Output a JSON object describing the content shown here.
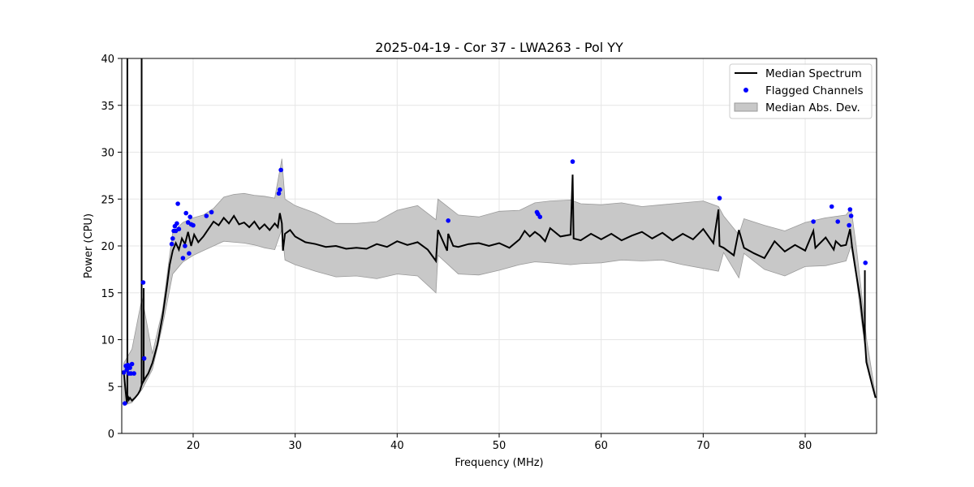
{
  "chart_data": {
    "type": "line",
    "title": "2025-04-19 - Cor 37 - LWA263 - Pol YY",
    "xlabel": "Frequency (MHz)",
    "ylabel": "Power (CPU)",
    "xlim": [
      13.0,
      87.0
    ],
    "ylim": [
      0,
      40
    ],
    "xticks": [
      20,
      30,
      40,
      50,
      60,
      70,
      80
    ],
    "yticks": [
      0,
      5,
      10,
      15,
      20,
      25,
      30,
      35,
      40
    ],
    "grid": true,
    "legend_position": "top-right",
    "legend": [
      "Median Spectrum",
      "Flagged Channels",
      "Median Abs. Dev."
    ],
    "colors": {
      "median": "#000000",
      "flagged": "#0000ff",
      "mad": "#c8c8c8",
      "mad_edge": "#9a9a9a"
    },
    "series": [
      {
        "name": "Median Spectrum",
        "x": [
          13.2,
          13.5,
          13.6,
          13.7,
          13.8,
          14.0,
          14.3,
          14.6,
          14.8,
          14.9,
          15.0,
          15.1,
          15.3,
          15.6,
          16.0,
          16.5,
          17.0,
          17.4,
          17.7,
          18.0,
          18.3,
          18.6,
          18.9,
          19.2,
          19.5,
          19.8,
          20.1,
          20.5,
          21.0,
          21.5,
          22.0,
          22.5,
          23.0,
          23.5,
          24.0,
          24.5,
          25.0,
          25.5,
          26.0,
          26.5,
          27.0,
          27.5,
          28.0,
          28.3,
          28.5,
          28.7,
          28.8,
          29.0,
          29.5,
          30.0,
          31.0,
          32.0,
          33.0,
          34.0,
          35.0,
          36.0,
          37.0,
          38.0,
          39.0,
          40.0,
          41.0,
          42.0,
          43.0,
          43.8,
          44.0,
          44.9,
          45.0,
          45.5,
          46.0,
          47.0,
          48.0,
          49.0,
          50.0,
          51.0,
          52.0,
          52.5,
          53.0,
          53.5,
          54.0,
          54.5,
          55.0,
          56.0,
          57.0,
          57.2,
          57.3,
          58.0,
          59.0,
          60.0,
          61.0,
          62.0,
          63.0,
          64.0,
          65.0,
          66.0,
          67.0,
          68.0,
          69.0,
          70.0,
          71.0,
          71.5,
          71.6,
          72.0,
          73.0,
          73.5,
          74.0,
          75.0,
          76.0,
          77.0,
          78.0,
          79.0,
          80.0,
          80.8,
          81.0,
          82.0,
          82.8,
          83.0,
          83.5,
          84.0,
          84.4,
          84.6,
          85.0,
          85.4,
          85.6,
          85.8,
          85.9,
          86.0,
          86.3,
          86.6,
          86.9
        ],
        "values": [
          6.5,
          3.2,
          4.0,
          3.6,
          3.8,
          3.5,
          3.8,
          4.2,
          4.6,
          5.0,
          5.3,
          5.5,
          5.9,
          6.4,
          7.5,
          9.5,
          12.5,
          15.5,
          18.0,
          19.5,
          20.3,
          19.6,
          20.8,
          20.2,
          21.5,
          20.0,
          21.2,
          20.4,
          21.0,
          21.8,
          22.6,
          22.2,
          23.0,
          22.4,
          23.2,
          22.3,
          22.5,
          22.0,
          22.6,
          21.8,
          22.3,
          21.7,
          22.4,
          22.0,
          23.5,
          22.4,
          19.5,
          21.3,
          21.7,
          21.0,
          20.4,
          20.2,
          19.9,
          20.0,
          19.7,
          19.8,
          19.7,
          20.2,
          19.9,
          20.5,
          20.1,
          20.4,
          19.6,
          18.4,
          21.7,
          19.5,
          21.3,
          20.0,
          19.9,
          20.2,
          20.3,
          20.0,
          20.3,
          19.8,
          20.7,
          21.6,
          21.0,
          21.5,
          21.1,
          20.5,
          21.9,
          21.0,
          21.2,
          27.6,
          20.8,
          20.6,
          21.3,
          20.7,
          21.3,
          20.6,
          21.1,
          21.5,
          20.8,
          21.4,
          20.6,
          21.3,
          20.7,
          21.8,
          20.3,
          23.9,
          20.0,
          19.8,
          19.0,
          21.7,
          19.8,
          19.2,
          18.7,
          20.5,
          19.4,
          20.1,
          19.5,
          21.6,
          19.8,
          20.9,
          19.6,
          20.5,
          20.0,
          20.1,
          21.8,
          19.9,
          17.0,
          14.3,
          12.3,
          10.5,
          9.2,
          7.6,
          6.3,
          5.0,
          3.8
        ]
      },
      {
        "name": "Flagged Channels",
        "x": [
          13.2,
          13.3,
          13.4,
          13.5,
          13.6,
          13.7,
          13.8,
          13.9,
          14.0,
          14.2,
          15.1,
          15.2,
          17.9,
          18.0,
          18.1,
          18.2,
          18.3,
          18.4,
          18.5,
          18.6,
          19.0,
          19.2,
          19.3,
          19.5,
          19.6,
          19.7,
          19.8,
          20.0,
          21.3,
          21.8,
          28.4,
          28.5,
          28.6,
          45.0,
          53.7,
          53.8,
          54.0,
          57.2,
          71.6,
          80.8,
          82.6,
          83.2,
          84.3,
          84.4,
          84.5,
          85.9
        ],
        "values": [
          6.5,
          3.2,
          7.2,
          6.8,
          7.3,
          6.4,
          7.0,
          6.4,
          7.4,
          6.4,
          16.1,
          8.0,
          20.2,
          20.8,
          21.6,
          22.1,
          21.6,
          22.4,
          24.5,
          21.8,
          18.7,
          20.0,
          23.5,
          22.5,
          19.2,
          23.1,
          22.3,
          22.2,
          23.2,
          23.6,
          25.6,
          26.0,
          28.1,
          22.7,
          23.6,
          23.4,
          23.1,
          29.0,
          25.1,
          22.6,
          24.2,
          22.6,
          22.2,
          23.9,
          23.2,
          18.2
        ]
      },
      {
        "name": "Median Abs. Dev.",
        "x": [
          13.2,
          14.0,
          15.0,
          16.0,
          17.0,
          18.0,
          19.0,
          20.0,
          21.0,
          22.0,
          23.0,
          24.0,
          25.0,
          26.0,
          27.0,
          28.0,
          28.7,
          29.0,
          30.0,
          32.0,
          34.0,
          36.0,
          38.0,
          40.0,
          42.0,
          43.8,
          44.0,
          46.0,
          48.0,
          50.0,
          52.0,
          53.5,
          55.0,
          57.0,
          58.0,
          60.0,
          62.0,
          64.0,
          66.0,
          68.0,
          70.0,
          71.5,
          72.0,
          73.5,
          74.0,
          76.0,
          78.0,
          80.0,
          82.0,
          84.0,
          84.5,
          85.0,
          85.5,
          86.0,
          86.5,
          86.9
        ],
        "low": [
          3.0,
          3.3,
          4.7,
          6.8,
          11.5,
          17.0,
          18.3,
          19.0,
          19.5,
          20.0,
          20.5,
          20.4,
          20.3,
          20.1,
          19.8,
          19.6,
          21.8,
          18.5,
          18.0,
          17.3,
          16.7,
          16.8,
          16.5,
          17.0,
          16.8,
          15.0,
          19.0,
          17.0,
          16.9,
          17.4,
          18.0,
          18.3,
          18.2,
          18.0,
          18.1,
          18.2,
          18.5,
          18.4,
          18.5,
          18.0,
          17.6,
          17.3,
          19.3,
          16.6,
          19.2,
          17.5,
          16.8,
          17.8,
          17.9,
          18.4,
          20.0,
          16.7,
          12.2,
          8.2,
          5.5,
          3.8
        ],
        "high": [
          7.5,
          9.0,
          14.5,
          8.5,
          13.2,
          21.5,
          22.5,
          23.0,
          23.3,
          24.0,
          25.2,
          25.5,
          25.6,
          25.4,
          25.3,
          25.1,
          29.3,
          25.0,
          24.3,
          23.5,
          22.4,
          22.4,
          22.6,
          23.8,
          24.3,
          22.8,
          25.0,
          23.3,
          23.1,
          23.7,
          23.8,
          24.6,
          24.8,
          24.9,
          24.5,
          24.4,
          24.6,
          24.2,
          24.4,
          24.6,
          24.8,
          24.2,
          23.2,
          21.2,
          22.9,
          22.2,
          21.6,
          22.5,
          23.0,
          23.3,
          24.0,
          20.0,
          15.3,
          10.2,
          6.8,
          4.0
        ]
      }
    ],
    "spikes": [
      {
        "x": 13.55,
        "to": 40
      },
      {
        "x": 14.95,
        "to": 40
      },
      {
        "x": 15.15,
        "to": 15.5
      },
      {
        "x": 85.85,
        "to": 17.4
      }
    ]
  }
}
